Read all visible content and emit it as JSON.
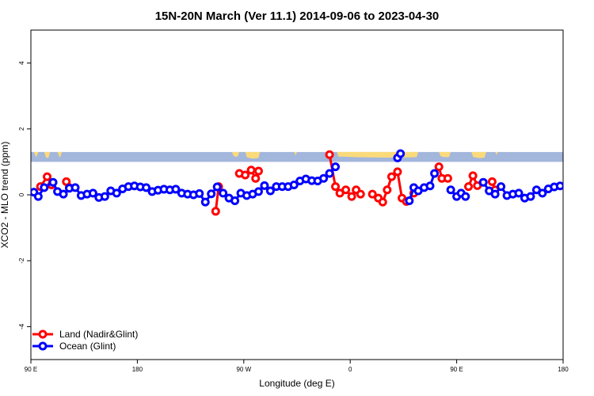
{
  "chart_data": {
    "type": "line",
    "title": "15N-20N March (Ver 11.1)   2014-09-06 to 2023-04-30",
    "xlabel": "Longitude (deg E)",
    "ylabel": "XCO2 - MLO trend (ppm)",
    "xlim": [
      90,
      450
    ],
    "ylim": [
      -5,
      5
    ],
    "x_ticks": [
      {
        "value": 90,
        "label": "90 E"
      },
      {
        "value": 162,
        "label": "180"
      },
      {
        "value": 234,
        "label": "90 W"
      },
      {
        "value": 306,
        "label": "0"
      },
      {
        "value": 378,
        "label": "90 E"
      },
      {
        "value": 450,
        "label": "180"
      }
    ],
    "y_ticks": [
      {
        "value": -4,
        "label": "-4"
      },
      {
        "value": -2,
        "label": "-2"
      },
      {
        "value": 0,
        "label": "0"
      },
      {
        "value": 2,
        "label": "2"
      },
      {
        "value": 4,
        "label": "4"
      }
    ],
    "legend": {
      "placement": "bottom-left",
      "entries": [
        {
          "label": "Land (Nadir&Glint)",
          "color": "#ff0000"
        },
        {
          "label": "Ocean (Glint)",
          "color": "#0000ff"
        }
      ]
    },
    "map_strip": {
      "y_range": [
        1.0,
        1.3
      ],
      "ocean_color": "#a3b6dc",
      "land_color": "#fada7a"
    },
    "series": [
      {
        "name": "Land (Nadir&Glint)",
        "color": "#ff0000",
        "segments": [
          [
            [
              96.5,
              0.25
            ],
            [
              101,
              0.55
            ],
            [
              104,
              0.3
            ]
          ],
          [
            [
              114,
              0.4
            ],
            [
              116,
              0.22
            ]
          ],
          [
            [
              215,
              -0.5
            ],
            [
              217,
              0.25
            ]
          ],
          [
            [
              231,
              0.65
            ],
            [
              235,
              0.6
            ],
            [
              239,
              0.75
            ],
            [
              242,
              0.5
            ],
            [
              244,
              0.72
            ]
          ],
          [
            [
              292,
              1.22
            ],
            [
              296,
              0.25
            ],
            [
              299,
              0.05
            ],
            [
              303,
              0.15
            ],
            [
              307,
              -0.05
            ],
            [
              310,
              0.15
            ],
            [
              313,
              0.02
            ]
          ],
          [
            [
              321,
              0.02
            ],
            [
              325,
              -0.1
            ],
            [
              328,
              -0.22
            ],
            [
              331,
              0.15
            ],
            [
              334,
              0.55
            ],
            [
              338,
              0.7
            ],
            [
              341,
              -0.1
            ],
            [
              344,
              -0.2
            ]
          ],
          [
            [
              349,
              0.05
            ]
          ],
          [
            [
              366,
              0.85
            ],
            [
              368,
              0.5
            ],
            [
              372,
              0.5
            ]
          ],
          [
            [
              386,
              0.25
            ],
            [
              389,
              0.58
            ],
            [
              392,
              0.28
            ]
          ],
          [
            [
              402,
              0.4
            ],
            [
              404,
              0.15
            ]
          ]
        ]
      },
      {
        "name": "Ocean (Glint)",
        "color": "#0000ff",
        "segments": [
          [
            [
              92,
              0.08
            ],
            [
              95,
              -0.05
            ],
            [
              99,
              0.22
            ],
            [
              105,
              0.38
            ],
            [
              108,
              0.1
            ],
            [
              112,
              0.02
            ],
            [
              116,
              0.2
            ],
            [
              120,
              0.22
            ],
            [
              124,
              -0.02
            ],
            [
              128,
              0.02
            ],
            [
              132,
              0.05
            ],
            [
              136,
              -0.08
            ],
            [
              140,
              -0.05
            ],
            [
              144,
              0.12
            ],
            [
              148,
              0.05
            ],
            [
              152,
              0.18
            ],
            [
              156,
              0.25
            ],
            [
              160,
              0.27
            ],
            [
              164,
              0.24
            ],
            [
              168,
              0.22
            ],
            [
              172,
              0.1
            ],
            [
              176,
              0.14
            ],
            [
              180,
              0.17
            ],
            [
              184,
              0.15
            ],
            [
              188,
              0.17
            ],
            [
              192,
              0.05
            ],
            [
              196,
              0.02
            ],
            [
              200,
              0.0
            ],
            [
              204,
              0.04
            ],
            [
              208,
              -0.22
            ],
            [
              212,
              0.03
            ],
            [
              216,
              0.24
            ],
            [
              220,
              0.05
            ],
            [
              224,
              -0.1
            ],
            [
              228,
              -0.18
            ],
            [
              232,
              0.05
            ],
            [
              236,
              -0.02
            ],
            [
              240,
              0.02
            ],
            [
              244,
              0.1
            ],
            [
              248,
              0.28
            ],
            [
              252,
              0.12
            ],
            [
              256,
              0.25
            ],
            [
              260,
              0.25
            ],
            [
              264,
              0.25
            ],
            [
              268,
              0.3
            ],
            [
              272,
              0.42
            ],
            [
              276,
              0.48
            ],
            [
              280,
              0.43
            ],
            [
              284,
              0.42
            ],
            [
              288,
              0.5
            ],
            [
              292,
              0.65
            ],
            [
              296,
              0.85
            ]
          ],
          [
            [
              338,
              1.12
            ],
            [
              340,
              1.25
            ]
          ],
          [
            [
              346,
              -0.18
            ],
            [
              349,
              0.22
            ],
            [
              352,
              0.12
            ],
            [
              356,
              0.22
            ],
            [
              360,
              0.27
            ],
            [
              363,
              0.65
            ]
          ],
          [
            [
              374,
              0.15
            ],
            [
              378,
              -0.05
            ],
            [
              381,
              0.05
            ],
            [
              384,
              -0.05
            ]
          ],
          [
            [
              396,
              0.38
            ],
            [
              400,
              0.12
            ],
            [
              404,
              0.02
            ],
            [
              408,
              0.25
            ],
            [
              412,
              -0.02
            ],
            [
              416,
              0.02
            ],
            [
              420,
              0.05
            ],
            [
              424,
              -0.1
            ],
            [
              428,
              -0.05
            ],
            [
              432,
              0.15
            ],
            [
              436,
              0.05
            ],
            [
              440,
              0.18
            ],
            [
              444,
              0.24
            ],
            [
              448,
              0.27
            ]
          ]
        ]
      }
    ]
  }
}
